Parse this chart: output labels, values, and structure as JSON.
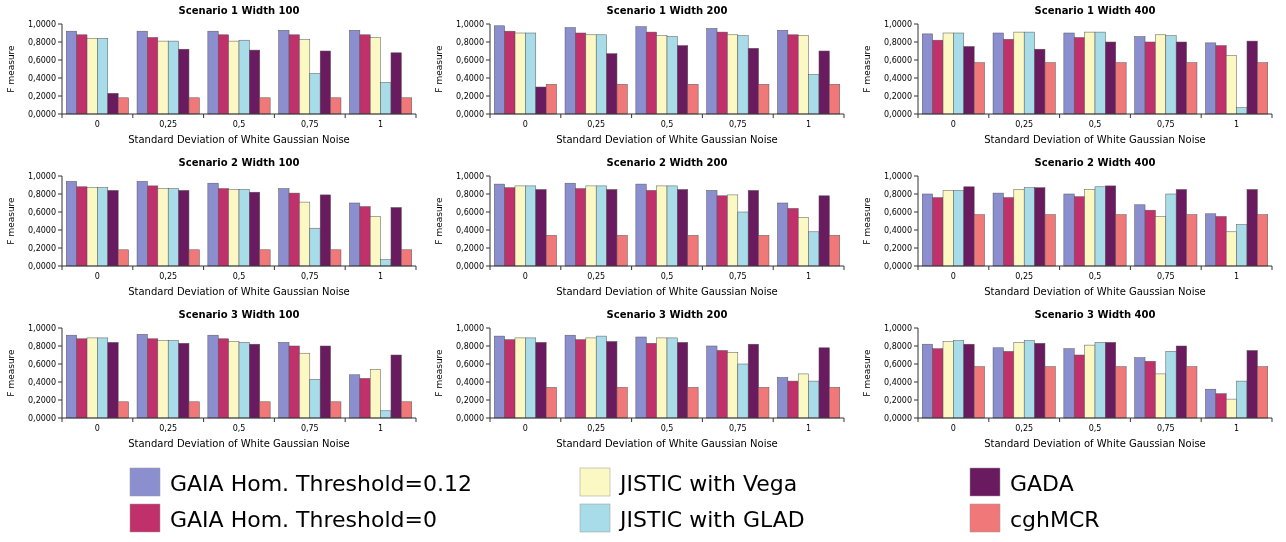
{
  "chart_data": [
    {
      "type": "bar",
      "title": "Scenario 1 Width 100",
      "xlabel": "Standard Deviation of White Gaussian Noise",
      "ylabel": "F measure",
      "categories": [
        "0",
        "0,25",
        "0,5",
        "0,75",
        "1"
      ],
      "ylim": [
        0,
        1
      ],
      "yticks": [
        {
          "value": 0,
          "label": "0,0000"
        },
        {
          "value": 0.2,
          "label": "0,2000"
        },
        {
          "value": 0.4,
          "label": "0,4000"
        },
        {
          "value": 0.6,
          "label": "0,6000"
        },
        {
          "value": 0.8,
          "label": "0,8000"
        },
        {
          "value": 1,
          "label": "1,0000"
        }
      ],
      "legend": "bottom",
      "series": [
        {
          "name": "GAIA  Hom. Threshold=0.12",
          "color": "#8b8fd0",
          "values": [
            0.92,
            0.92,
            0.92,
            0.93,
            0.93
          ]
        },
        {
          "name": "GAIA  Hom. Threshold=0",
          "color": "#c0306a",
          "values": [
            0.88,
            0.85,
            0.88,
            0.88,
            0.88
          ]
        },
        {
          "name": "JISTIC with Vega",
          "color": "#fbf8c4",
          "values": [
            0.84,
            0.81,
            0.81,
            0.83,
            0.85
          ]
        },
        {
          "name": "JISTIC with GLAD",
          "color": "#a8dce8",
          "values": [
            0.84,
            0.81,
            0.82,
            0.45,
            0.35
          ]
        },
        {
          "name": "GADA",
          "color": "#6a1a5e",
          "values": [
            0.23,
            0.72,
            0.71,
            0.7,
            0.68
          ]
        },
        {
          "name": "cghMCR",
          "color": "#f07878",
          "values": [
            0.18,
            0.18,
            0.18,
            0.18,
            0.18
          ]
        }
      ]
    },
    {
      "type": "bar",
      "title": "Scenario 1 Width 200",
      "xlabel": "Standard Deviation of White Gaussian Noise",
      "ylabel": "F measure",
      "categories": [
        "0",
        "0,25",
        "0,5",
        "0,75",
        "1"
      ],
      "ylim": [
        0,
        1
      ],
      "yticks": [
        {
          "value": 0,
          "label": "0,0000"
        },
        {
          "value": 0.2,
          "label": "0,2000"
        },
        {
          "value": 0.4,
          "label": "0,4000"
        },
        {
          "value": 0.6,
          "label": "0,6000"
        },
        {
          "value": 0.8,
          "label": "0,8000"
        },
        {
          "value": 1,
          "label": "1,0000"
        }
      ],
      "series": [
        {
          "color": "#8b8fd0",
          "values": [
            0.98,
            0.96,
            0.97,
            0.95,
            0.93
          ]
        },
        {
          "color": "#c0306a",
          "values": [
            0.92,
            0.9,
            0.91,
            0.91,
            0.88
          ]
        },
        {
          "color": "#fbf8c4",
          "values": [
            0.9,
            0.88,
            0.87,
            0.88,
            0.87
          ]
        },
        {
          "color": "#a8dce8",
          "values": [
            0.9,
            0.88,
            0.86,
            0.87,
            0.44
          ]
        },
        {
          "color": "#6a1a5e",
          "values": [
            0.3,
            0.67,
            0.76,
            0.73,
            0.7
          ]
        },
        {
          "color": "#f07878",
          "values": [
            0.33,
            0.33,
            0.33,
            0.33,
            0.33
          ]
        }
      ]
    },
    {
      "type": "bar",
      "title": "Scenario 1 Width 400",
      "xlabel": "Standard Deviation of White Gaussian Noise",
      "ylabel": "F measure",
      "categories": [
        "0",
        "0,25",
        "0,5",
        "0,75",
        "1"
      ],
      "ylim": [
        0,
        1
      ],
      "yticks": [
        {
          "value": 0,
          "label": "0,0000"
        },
        {
          "value": 0.2,
          "label": "0,2000"
        },
        {
          "value": 0.4,
          "label": "0,4000"
        },
        {
          "value": 0.6,
          "label": "0,6000"
        },
        {
          "value": 0.8,
          "label": "0,8000"
        },
        {
          "value": 1,
          "label": "1,0000"
        }
      ],
      "series": [
        {
          "color": "#8b8fd0",
          "values": [
            0.89,
            0.9,
            0.9,
            0.86,
            0.79
          ]
        },
        {
          "color": "#c0306a",
          "values": [
            0.82,
            0.83,
            0.85,
            0.8,
            0.76
          ]
        },
        {
          "color": "#fbf8c4",
          "values": [
            0.9,
            0.91,
            0.91,
            0.88,
            0.65
          ]
        },
        {
          "color": "#a8dce8",
          "values": [
            0.9,
            0.91,
            0.91,
            0.87,
            0.07
          ]
        },
        {
          "color": "#6a1a5e",
          "values": [
            0.75,
            0.72,
            0.8,
            0.8,
            0.81
          ]
        },
        {
          "color": "#f07878",
          "values": [
            0.57,
            0.57,
            0.57,
            0.57,
            0.57
          ]
        }
      ]
    },
    {
      "type": "bar",
      "title": "Scenario 2 Width 100",
      "xlabel": "Standard Deviation of White Gaussian Noise",
      "ylabel": "F measure",
      "categories": [
        "0",
        "0,25",
        "0,5",
        "0,75",
        "1"
      ],
      "ylim": [
        0,
        1
      ],
      "yticks": [
        {
          "value": 0,
          "label": "0,0000"
        },
        {
          "value": 0.2,
          "label": "0,2000"
        },
        {
          "value": 0.4,
          "label": "0,4000"
        },
        {
          "value": 0.6,
          "label": "0,6000"
        },
        {
          "value": 0.8,
          "label": "0,8000"
        },
        {
          "value": 1,
          "label": "1,0000"
        }
      ],
      "series": [
        {
          "color": "#8b8fd0",
          "values": [
            0.94,
            0.94,
            0.92,
            0.86,
            0.7
          ]
        },
        {
          "color": "#c0306a",
          "values": [
            0.88,
            0.89,
            0.86,
            0.81,
            0.66
          ]
        },
        {
          "color": "#fbf8c4",
          "values": [
            0.87,
            0.86,
            0.85,
            0.71,
            0.55
          ]
        },
        {
          "color": "#a8dce8",
          "values": [
            0.87,
            0.86,
            0.85,
            0.42,
            0.07
          ]
        },
        {
          "color": "#6a1a5e",
          "values": [
            0.84,
            0.84,
            0.82,
            0.79,
            0.65
          ]
        },
        {
          "color": "#f07878",
          "values": [
            0.18,
            0.18,
            0.18,
            0.18,
            0.18
          ]
        }
      ]
    },
    {
      "type": "bar",
      "title": "Scenario 2 Width 200",
      "xlabel": "Standard Deviation of White Gaussian Noise",
      "ylabel": "F measure",
      "categories": [
        "0",
        "0,25",
        "0,5",
        "0,75",
        "1"
      ],
      "ylim": [
        0,
        1
      ],
      "yticks": [
        {
          "value": 0,
          "label": "0,0000"
        },
        {
          "value": 0.2,
          "label": "0,2000"
        },
        {
          "value": 0.4,
          "label": "0,4000"
        },
        {
          "value": 0.6,
          "label": "0,6000"
        },
        {
          "value": 0.8,
          "label": "0,8000"
        },
        {
          "value": 1,
          "label": "1,0000"
        }
      ],
      "series": [
        {
          "color": "#8b8fd0",
          "values": [
            0.91,
            0.92,
            0.91,
            0.84,
            0.7
          ]
        },
        {
          "color": "#c0306a",
          "values": [
            0.87,
            0.86,
            0.84,
            0.78,
            0.64
          ]
        },
        {
          "color": "#fbf8c4",
          "values": [
            0.89,
            0.89,
            0.89,
            0.79,
            0.54
          ]
        },
        {
          "color": "#a8dce8",
          "values": [
            0.89,
            0.89,
            0.89,
            0.6,
            0.38
          ]
        },
        {
          "color": "#6a1a5e",
          "values": [
            0.85,
            0.85,
            0.85,
            0.84,
            0.78
          ]
        },
        {
          "color": "#f07878",
          "values": [
            0.34,
            0.34,
            0.34,
            0.34,
            0.34
          ]
        }
      ]
    },
    {
      "type": "bar",
      "title": "Scenario 2 Width 400",
      "xlabel": "Standard Deviation of White Gaussian Noise",
      "ylabel": "F measure",
      "categories": [
        "0",
        "0,25",
        "0,5",
        "0,75",
        "1"
      ],
      "ylim": [
        0,
        1
      ],
      "yticks": [
        {
          "value": 0,
          "label": "0,0000"
        },
        {
          "value": 0.2,
          "label": "0,2000"
        },
        {
          "value": 0.4,
          "label": "0,4000"
        },
        {
          "value": 0.6,
          "label": "0,6000"
        },
        {
          "value": 0.8,
          "label": "0,8000"
        },
        {
          "value": 1,
          "label": "1,0000"
        }
      ],
      "series": [
        {
          "color": "#8b8fd0",
          "values": [
            0.8,
            0.81,
            0.8,
            0.68,
            0.58
          ]
        },
        {
          "color": "#c0306a",
          "values": [
            0.76,
            0.76,
            0.77,
            0.62,
            0.55
          ]
        },
        {
          "color": "#fbf8c4",
          "values": [
            0.84,
            0.85,
            0.85,
            0.55,
            0.38
          ]
        },
        {
          "color": "#a8dce8",
          "values": [
            0.84,
            0.87,
            0.88,
            0.8,
            0.46
          ]
        },
        {
          "color": "#6a1a5e",
          "values": [
            0.88,
            0.87,
            0.89,
            0.85,
            0.85
          ]
        },
        {
          "color": "#f07878",
          "values": [
            0.57,
            0.57,
            0.57,
            0.57,
            0.57
          ]
        }
      ]
    },
    {
      "type": "bar",
      "title": "Scenario 3 Width 100",
      "xlabel": "Standard Deviation of White Gaussian Noise",
      "ylabel": "F measure",
      "categories": [
        "0",
        "0,25",
        "0,5",
        "0,75",
        "1"
      ],
      "ylim": [
        0,
        1
      ],
      "yticks": [
        {
          "value": 0,
          "label": "0,0000"
        },
        {
          "value": 0.2,
          "label": "0,2000"
        },
        {
          "value": 0.4,
          "label": "0,4000"
        },
        {
          "value": 0.6,
          "label": "0,6000"
        },
        {
          "value": 0.8,
          "label": "0,8000"
        },
        {
          "value": 1,
          "label": "1,0000"
        }
      ],
      "series": [
        {
          "color": "#8b8fd0",
          "values": [
            0.92,
            0.93,
            0.92,
            0.84,
            0.48
          ]
        },
        {
          "color": "#c0306a",
          "values": [
            0.88,
            0.88,
            0.88,
            0.8,
            0.44
          ]
        },
        {
          "color": "#fbf8c4",
          "values": [
            0.89,
            0.86,
            0.85,
            0.72,
            0.54
          ]
        },
        {
          "color": "#a8dce8",
          "values": [
            0.89,
            0.86,
            0.84,
            0.43,
            0.08
          ]
        },
        {
          "color": "#6a1a5e",
          "values": [
            0.84,
            0.83,
            0.82,
            0.8,
            0.7
          ]
        },
        {
          "color": "#f07878",
          "values": [
            0.18,
            0.18,
            0.18,
            0.18,
            0.18
          ]
        }
      ]
    },
    {
      "type": "bar",
      "title": "Scenario 3 Width 200",
      "xlabel": "Standard Deviation of White Gaussian Noise",
      "ylabel": "F measure",
      "categories": [
        "0",
        "0,25",
        "0,5",
        "0,75",
        "1"
      ],
      "ylim": [
        0,
        1
      ],
      "yticks": [
        {
          "value": 0,
          "label": "0,0000"
        },
        {
          "value": 0.2,
          "label": "0,2000"
        },
        {
          "value": 0.4,
          "label": "0,4000"
        },
        {
          "value": 0.6,
          "label": "0,6000"
        },
        {
          "value": 0.8,
          "label": "0,8000"
        },
        {
          "value": 1,
          "label": "1,0000"
        }
      ],
      "series": [
        {
          "color": "#8b8fd0",
          "values": [
            0.91,
            0.92,
            0.9,
            0.8,
            0.45
          ]
        },
        {
          "color": "#c0306a",
          "values": [
            0.87,
            0.87,
            0.83,
            0.75,
            0.41
          ]
        },
        {
          "color": "#fbf8c4",
          "values": [
            0.89,
            0.89,
            0.89,
            0.73,
            0.49
          ]
        },
        {
          "color": "#a8dce8",
          "values": [
            0.89,
            0.91,
            0.89,
            0.6,
            0.41
          ]
        },
        {
          "color": "#6a1a5e",
          "values": [
            0.84,
            0.85,
            0.84,
            0.82,
            0.78
          ]
        },
        {
          "color": "#f07878",
          "values": [
            0.34,
            0.34,
            0.34,
            0.34,
            0.34
          ]
        }
      ]
    },
    {
      "type": "bar",
      "title": "Scenario 3 Width 400",
      "xlabel": "Standard Deviation of White Gaussian Noise",
      "ylabel": "F measure",
      "categories": [
        "0",
        "0,25",
        "0,5",
        "0,75",
        "1"
      ],
      "ylim": [
        0,
        1
      ],
      "yticks": [
        {
          "value": 0,
          "label": "0,0000"
        },
        {
          "value": 0.2,
          "label": "0,2000"
        },
        {
          "value": 0.4,
          "label": "0,4000"
        },
        {
          "value": 0.6,
          "label": "0,6000"
        },
        {
          "value": 0.8,
          "label": "0,8000"
        },
        {
          "value": 1,
          "label": "1,0000"
        }
      ],
      "series": [
        {
          "color": "#8b8fd0",
          "values": [
            0.82,
            0.78,
            0.77,
            0.67,
            0.32
          ]
        },
        {
          "color": "#c0306a",
          "values": [
            0.77,
            0.74,
            0.7,
            0.63,
            0.27
          ]
        },
        {
          "color": "#fbf8c4",
          "values": [
            0.85,
            0.84,
            0.81,
            0.49,
            0.21
          ]
        },
        {
          "color": "#a8dce8",
          "values": [
            0.86,
            0.86,
            0.84,
            0.74,
            0.41
          ]
        },
        {
          "color": "#6a1a5e",
          "values": [
            0.82,
            0.83,
            0.84,
            0.8,
            0.75
          ]
        },
        {
          "color": "#f07878",
          "values": [
            0.57,
            0.57,
            0.57,
            0.57,
            0.57
          ]
        }
      ]
    }
  ]
}
